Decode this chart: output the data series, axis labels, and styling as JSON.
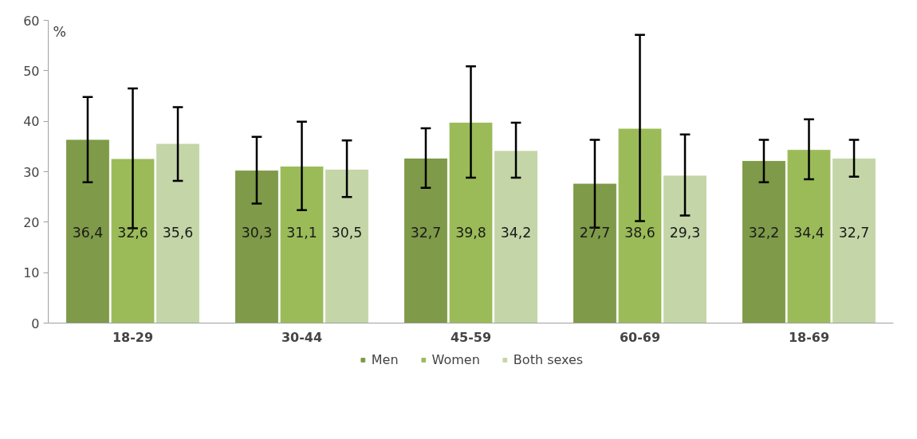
{
  "chart_data": {
    "type": "bar",
    "ylabel": "%",
    "categories": [
      "18-29",
      "30-44",
      "45-59",
      "60-69",
      "18-69"
    ],
    "series": [
      {
        "name": "Men",
        "color": "#7f9a48",
        "values": [
          36.4,
          30.3,
          32.7,
          27.7,
          32.2
        ],
        "value_labels": [
          "36,4",
          "30,3",
          "32,7",
          "27,7",
          "32,2"
        ],
        "errors": [
          [
            27.9,
            44.8
          ],
          [
            23.7,
            36.9
          ],
          [
            26.8,
            38.6
          ],
          [
            18.9,
            36.3
          ],
          [
            27.9,
            36.3
          ]
        ]
      },
      {
        "name": "Women",
        "color": "#9bbb59",
        "values": [
          32.6,
          31.1,
          39.8,
          38.6,
          34.4
        ],
        "value_labels": [
          "32,6",
          "31,1",
          "39,8",
          "38,6",
          "34,4"
        ],
        "errors": [
          [
            18.8,
            46.5
          ],
          [
            22.4,
            39.9
          ],
          [
            28.8,
            50.9
          ],
          [
            20.2,
            57.1
          ],
          [
            28.5,
            40.4
          ]
        ]
      },
      {
        "name": "Both sexes",
        "color": "#c4d6a8",
        "values": [
          35.6,
          30.5,
          34.2,
          29.3,
          32.7
        ],
        "value_labels": [
          "35,6",
          "30,5",
          "34,2",
          "29,3",
          "32,7"
        ],
        "errors": [
          [
            28.2,
            42.8
          ],
          [
            25.0,
            36.2
          ],
          [
            28.8,
            39.7
          ],
          [
            21.3,
            37.4
          ],
          [
            29.0,
            36.3
          ]
        ]
      }
    ],
    "ylim": [
      0,
      60
    ],
    "yticks": [
      0,
      10,
      20,
      30,
      40,
      50,
      60
    ],
    "grid": false,
    "legend": "bottom"
  }
}
